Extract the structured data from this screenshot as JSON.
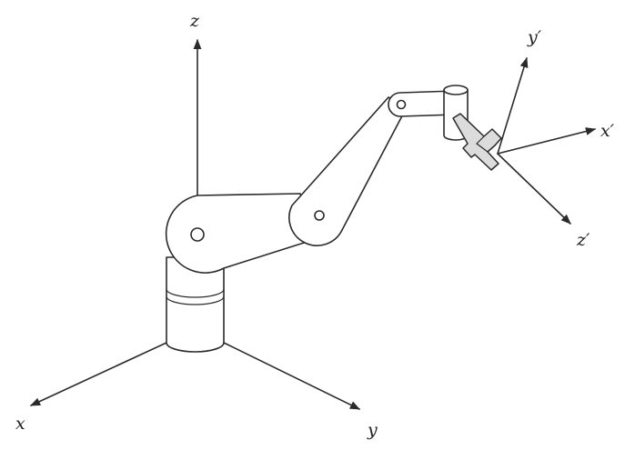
{
  "colors": {
    "ink": "#2a2a2a",
    "background": "#ffffff",
    "gripper_fill": "#dcdcdc"
  },
  "base_frame": {
    "x_label": "x",
    "y_label": "y",
    "z_label": "z"
  },
  "tool_frame": {
    "x_label": "x′",
    "y_label": "y′",
    "z_label": "z′"
  }
}
